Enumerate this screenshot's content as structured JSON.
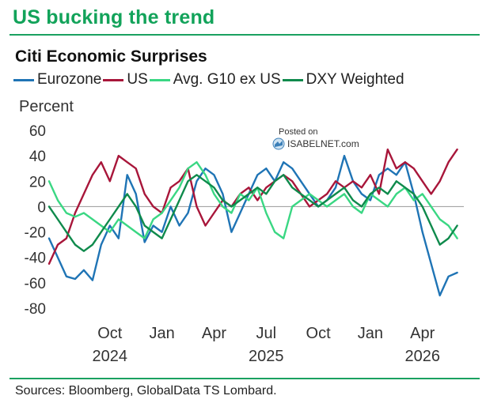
{
  "header": {
    "headline": "US bucking the trend",
    "subtitle": "Citi Economic Surprises"
  },
  "footer": {
    "source": "Sources: Bloomberg, GlobalData TS Lombard."
  },
  "watermark": {
    "posted": "Posted on",
    "brand": "ISABELNET.com"
  },
  "chart_data": {
    "type": "line",
    "ylabel": "Percent",
    "ylim": [
      -80,
      60
    ],
    "yticks": [
      60,
      40,
      20,
      0,
      -20,
      -40,
      -60,
      -80
    ],
    "x_axis_units": "months since Jun 2024 (approx.)",
    "xlim": [
      0,
      23.7
    ],
    "xticks": [
      {
        "x": 3.5,
        "label": "Oct",
        "year": "2024"
      },
      {
        "x": 6.5,
        "label": "Jan",
        "year": ""
      },
      {
        "x": 9.5,
        "label": "Apr",
        "year": ""
      },
      {
        "x": 12.5,
        "label": "Jul",
        "year": "2025"
      },
      {
        "x": 15.5,
        "label": "Oct",
        "year": ""
      },
      {
        "x": 18.5,
        "label": "Jan",
        "year": ""
      },
      {
        "x": 21.5,
        "label": "Apr",
        "year": "2026"
      }
    ],
    "zero_line": true,
    "legend_position": "top",
    "series": [
      {
        "name": "Eurozone",
        "color": "#1f74b5",
        "x": [
          0,
          0.5,
          1,
          1.5,
          2,
          2.5,
          3,
          3.5,
          4,
          4.5,
          5,
          5.5,
          6,
          6.5,
          7,
          7.5,
          8,
          8.5,
          9,
          9.5,
          10,
          10.5,
          11,
          11.5,
          12,
          12.5,
          13,
          13.5,
          14,
          14.5,
          15,
          15.5,
          16,
          16.5,
          17,
          17.5,
          18,
          18.5,
          19,
          19.5,
          20,
          20.5,
          21,
          21.5,
          22,
          22.5,
          23,
          23.5
        ],
        "values": [
          -25,
          -40,
          -55,
          -57,
          -50,
          -58,
          -30,
          -15,
          -25,
          25,
          10,
          -28,
          -15,
          -20,
          0,
          -15,
          -5,
          20,
          30,
          25,
          10,
          -20,
          -5,
          10,
          25,
          30,
          20,
          35,
          30,
          20,
          10,
          0,
          5,
          15,
          40,
          20,
          10,
          5,
          25,
          30,
          25,
          35,
          10,
          -20,
          -45,
          -70,
          -55,
          -52
        ]
      },
      {
        "name": "US",
        "color": "#a8163a",
        "x": [
          0,
          0.5,
          1,
          1.5,
          2,
          2.5,
          3,
          3.5,
          4,
          4.5,
          5,
          5.5,
          6,
          6.5,
          7,
          7.5,
          8,
          8.5,
          9,
          9.5,
          10,
          10.5,
          11,
          11.5,
          12,
          12.5,
          13,
          13.5,
          14,
          14.5,
          15,
          15.5,
          16,
          16.5,
          17,
          17.5,
          18,
          18.5,
          19,
          19.5,
          20,
          20.5,
          21,
          21.5,
          22,
          22.5,
          23,
          23.5
        ],
        "values": [
          -45,
          -30,
          -25,
          -5,
          10,
          25,
          35,
          20,
          40,
          35,
          30,
          10,
          0,
          -5,
          15,
          20,
          30,
          0,
          -15,
          -5,
          5,
          0,
          10,
          15,
          5,
          15,
          20,
          25,
          20,
          10,
          0,
          5,
          10,
          20,
          15,
          20,
          15,
          25,
          10,
          45,
          30,
          35,
          30,
          20,
          10,
          20,
          35,
          45
        ]
      },
      {
        "name": "Avg. G10 ex US",
        "color": "#3ad783",
        "x": [
          0,
          0.5,
          1,
          1.5,
          2,
          2.5,
          3,
          3.5,
          4,
          4.5,
          5,
          5.5,
          6,
          6.5,
          7,
          7.5,
          8,
          8.5,
          9,
          9.5,
          10,
          10.5,
          11,
          11.5,
          12,
          12.5,
          13,
          13.5,
          14,
          14.5,
          15,
          15.5,
          16,
          16.5,
          17,
          17.5,
          18,
          18.5,
          19,
          19.5,
          20,
          20.5,
          21,
          21.5,
          22,
          22.5,
          23,
          23.5
        ],
        "values": [
          20,
          5,
          -5,
          -8,
          -5,
          -10,
          -15,
          -20,
          -10,
          -15,
          -20,
          -25,
          -10,
          -5,
          5,
          15,
          30,
          35,
          25,
          10,
          0,
          -5,
          10,
          5,
          15,
          -5,
          -20,
          -25,
          0,
          5,
          10,
          5,
          0,
          5,
          10,
          0,
          -5,
          10,
          5,
          0,
          10,
          15,
          5,
          10,
          0,
          -10,
          -15,
          -25
        ]
      },
      {
        "name": "DXY Weighted",
        "color": "#0f8a4c",
        "x": [
          0,
          0.5,
          1,
          1.5,
          2,
          2.5,
          3,
          3.5,
          4,
          4.5,
          5,
          5.5,
          6,
          6.5,
          7,
          7.5,
          8,
          8.5,
          9,
          9.5,
          10,
          10.5,
          11,
          11.5,
          12,
          12.5,
          13,
          13.5,
          14,
          14.5,
          15,
          15.5,
          16,
          16.5,
          17,
          17.5,
          18,
          18.5,
          19,
          19.5,
          20,
          20.5,
          21,
          21.5,
          22,
          22.5,
          23,
          23.5
        ],
        "values": [
          0,
          -10,
          -20,
          -30,
          -35,
          -30,
          -20,
          -10,
          0,
          10,
          0,
          -15,
          -20,
          -25,
          -10,
          5,
          20,
          25,
          20,
          15,
          5,
          0,
          5,
          10,
          15,
          10,
          20,
          25,
          15,
          10,
          5,
          0,
          5,
          10,
          15,
          5,
          0,
          10,
          15,
          10,
          20,
          15,
          10,
          0,
          -15,
          -30,
          -25,
          -15
        ]
      }
    ]
  }
}
